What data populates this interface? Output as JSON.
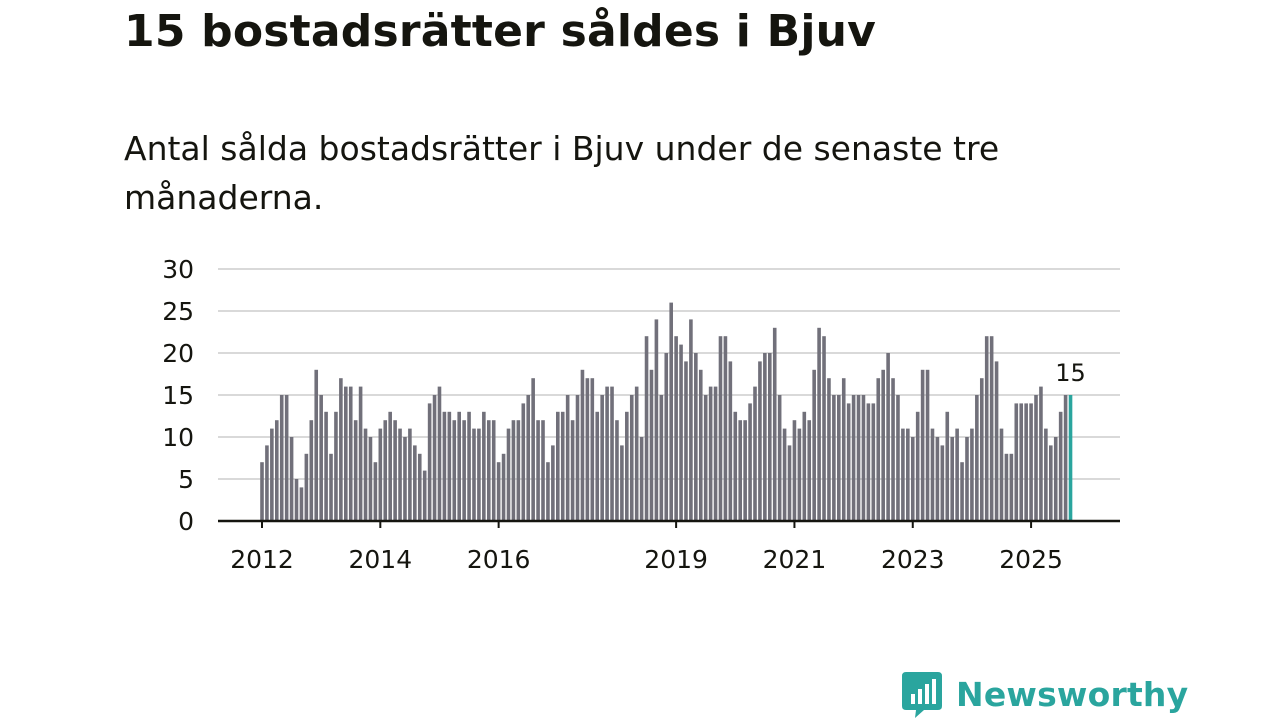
{
  "header": {
    "title": "15 bostadsrätter såldes i Bjuv",
    "subtitle": "Antal sålda bostadsrätter i Bjuv under de senaste tre månaderna."
  },
  "chart_data": {
    "type": "bar",
    "x_start": "2012-01",
    "frequency": "monthly",
    "values": [
      7,
      9,
      11,
      12,
      15,
      15,
      10,
      5,
      4,
      8,
      12,
      18,
      15,
      13,
      8,
      13,
      17,
      16,
      16,
      12,
      16,
      11,
      10,
      7,
      11,
      12,
      13,
      12,
      11,
      10,
      11,
      9,
      8,
      6,
      14,
      15,
      16,
      13,
      13,
      12,
      13,
      12,
      13,
      11,
      11,
      13,
      12,
      12,
      7,
      8,
      11,
      12,
      12,
      14,
      15,
      17,
      12,
      12,
      7,
      9,
      13,
      13,
      15,
      12,
      15,
      18,
      17,
      17,
      13,
      15,
      16,
      16,
      12,
      9,
      13,
      15,
      16,
      10,
      22,
      18,
      24,
      15,
      20,
      26,
      22,
      21,
      19,
      24,
      20,
      18,
      15,
      16,
      16,
      22,
      22,
      19,
      13,
      12,
      12,
      14,
      16,
      19,
      20,
      20,
      23,
      15,
      11,
      9,
      12,
      11,
      13,
      12,
      18,
      23,
      22,
      17,
      15,
      15,
      17,
      14,
      15,
      15,
      15,
      14,
      14,
      17,
      18,
      20,
      17,
      15,
      11,
      11,
      10,
      13,
      18,
      18,
      11,
      10,
      9,
      13,
      10,
      11,
      7,
      10,
      11,
      15,
      17,
      22,
      22,
      19,
      11,
      8,
      8,
      14,
      14,
      14,
      14,
      15,
      16,
      11,
      9,
      10,
      13,
      15,
      15
    ],
    "x_ticks": [
      "2012",
      "2014",
      "2016",
      "2019",
      "2021",
      "2023",
      "2025"
    ],
    "y_ticks": [
      0,
      5,
      10,
      15,
      20,
      25,
      30
    ],
    "ylim": [
      0,
      30
    ],
    "highlight": {
      "index": "last",
      "label": "15"
    },
    "xlabel": "",
    "ylabel": "",
    "grid": true
  },
  "colors": {
    "bar": "#71707a",
    "highlight": "#2aa59e",
    "grid": "#d9d9d9",
    "axis": "#15150f",
    "brand": "#2aa59e"
  },
  "brand": {
    "name": "Newsworthy",
    "icon": "newsworthy-logo-icon"
  }
}
